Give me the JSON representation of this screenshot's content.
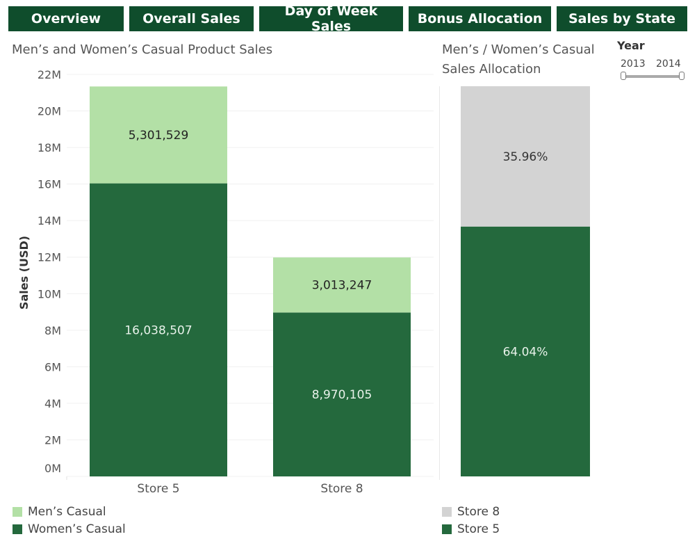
{
  "tabs": [
    {
      "label": "Overview",
      "name": "tab-overview"
    },
    {
      "label": "Overall Sales",
      "name": "tab-overall-sales"
    },
    {
      "label": "Day of Week Sales",
      "name": "tab-day-of-week-sales"
    },
    {
      "label": "Bonus Allocation",
      "name": "tab-bonus-allocation"
    },
    {
      "label": "Sales by State",
      "name": "tab-sales-by-state"
    }
  ],
  "year_filter": {
    "label": "Year",
    "start": "2013",
    "end": "2014"
  },
  "colors": {
    "mens": "#b3e0a6",
    "womens": "#24693d",
    "store8": "#d3d3d3",
    "store5": "#24693d",
    "tab_bg": "#0f4d2c"
  },
  "chart_data": [
    {
      "type": "bar",
      "stacked": true,
      "title": "Men’s and Women’s Casual Product Sales",
      "ylabel": "Sales (USD)",
      "ylim": [
        0,
        22000000
      ],
      "yticks": [
        "0M",
        "2M",
        "4M",
        "6M",
        "8M",
        "10M",
        "12M",
        "14M",
        "16M",
        "18M",
        "20M",
        "22M"
      ],
      "categories": [
        "Store 5",
        "Store 8"
      ],
      "series": [
        {
          "name": "Women’s Casual",
          "values": [
            16038507,
            8970105
          ],
          "labels": [
            "16,038,507",
            "8,970,105"
          ]
        },
        {
          "name": "Men’s Casual",
          "values": [
            5301529,
            3013247
          ],
          "labels": [
            "5,301,529",
            "3,013,247"
          ]
        }
      ],
      "legend": [
        "Men’s Casual",
        "Women’s Casual"
      ],
      "legend_position": "bottom-left",
      "grid": true
    },
    {
      "type": "bar",
      "stacked": true,
      "title": "Men’s / Women’s Casual Sales Allocation",
      "series": [
        {
          "name": "Store 5",
          "value": 64.04,
          "label": "64.04%"
        },
        {
          "name": "Store 8",
          "value": 35.96,
          "label": "35.96%"
        }
      ],
      "legend": [
        "Store 8",
        "Store 5"
      ],
      "legend_position": "bottom-left"
    }
  ]
}
